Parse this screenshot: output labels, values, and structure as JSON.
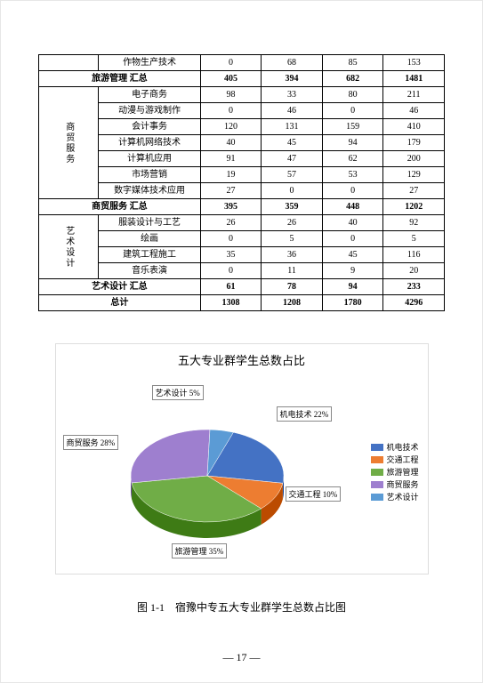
{
  "table": {
    "row_livestock": {
      "name": "作物生产技术",
      "c1": "0",
      "c2": "68",
      "c3": "85",
      "c4": "153"
    },
    "tour_sum": {
      "name": "旅游管理 汇总",
      "c1": "405",
      "c2": "394",
      "c3": "682",
      "c4": "1481"
    },
    "cat_commerce": "商贸服务",
    "commerce_rows": [
      {
        "name": "电子商务",
        "c1": "98",
        "c2": "33",
        "c3": "80",
        "c4": "211"
      },
      {
        "name": "动漫与游戏制作",
        "c1": "0",
        "c2": "46",
        "c3": "0",
        "c4": "46"
      },
      {
        "name": "会计事务",
        "c1": "120",
        "c2": "131",
        "c3": "159",
        "c4": "410"
      },
      {
        "name": "计算机网络技术",
        "c1": "40",
        "c2": "45",
        "c3": "94",
        "c4": "179"
      },
      {
        "name": "计算机应用",
        "c1": "91",
        "c2": "47",
        "c3": "62",
        "c4": "200"
      },
      {
        "name": "市场营销",
        "c1": "19",
        "c2": "57",
        "c3": "53",
        "c4": "129"
      },
      {
        "name": "数字媒体技术应用",
        "c1": "27",
        "c2": "0",
        "c3": "0",
        "c4": "27"
      }
    ],
    "commerce_sum": {
      "name": "商贸服务 汇总",
      "c1": "395",
      "c2": "359",
      "c3": "448",
      "c4": "1202"
    },
    "cat_art": "艺术设计",
    "art_rows": [
      {
        "name": "服装设计与工艺",
        "c1": "26",
        "c2": "26",
        "c3": "40",
        "c4": "92"
      },
      {
        "name": "绘画",
        "c1": "0",
        "c2": "5",
        "c3": "0",
        "c4": "5"
      },
      {
        "name": "建筑工程施工",
        "c1": "35",
        "c2": "36",
        "c3": "45",
        "c4": "116"
      },
      {
        "name": "音乐表演",
        "c1": "0",
        "c2": "11",
        "c3": "9",
        "c4": "20"
      }
    ],
    "art_sum": {
      "name": "艺术设计 汇总",
      "c1": "61",
      "c2": "78",
      "c3": "94",
      "c4": "233"
    },
    "grand": {
      "name": "总计",
      "c1": "1308",
      "c2": "1208",
      "c3": "1780",
      "c4": "4296"
    }
  },
  "chart": {
    "title": "五大专业群学生总数占比",
    "type": "pie",
    "background_color": "#ffffff",
    "title_fontsize": 13,
    "label_fontsize": 9,
    "slices": [
      {
        "label": "机电技术",
        "pct": 22,
        "color": "#4472c4",
        "callout": "机电技术 22%"
      },
      {
        "label": "交通工程",
        "pct": 10,
        "color": "#ed7d31",
        "callout": "交通工程 10%"
      },
      {
        "label": "旅游管理",
        "pct": 35,
        "color": "#70ad47",
        "callout": "旅游管理 35%"
      },
      {
        "label": "商贸服务",
        "pct": 28,
        "color": "#9e7fcf",
        "callout": "商贸服务 28%"
      },
      {
        "label": "艺术设计",
        "pct": 5,
        "color": "#5b9bd5",
        "callout": "艺术设计 5%"
      }
    ],
    "legend_colors": [
      "#4472c4",
      "#ed7d31",
      "#70ad47",
      "#9e7fcf",
      "#5b9bd5"
    ],
    "legend_labels": [
      "机电技术",
      "交通工程",
      "旅游管理",
      "商贸服务",
      "艺术设计"
    ]
  },
  "caption": "图 1-1　宿豫中专五大专业群学生总数占比图",
  "page_number": "— 17 —"
}
